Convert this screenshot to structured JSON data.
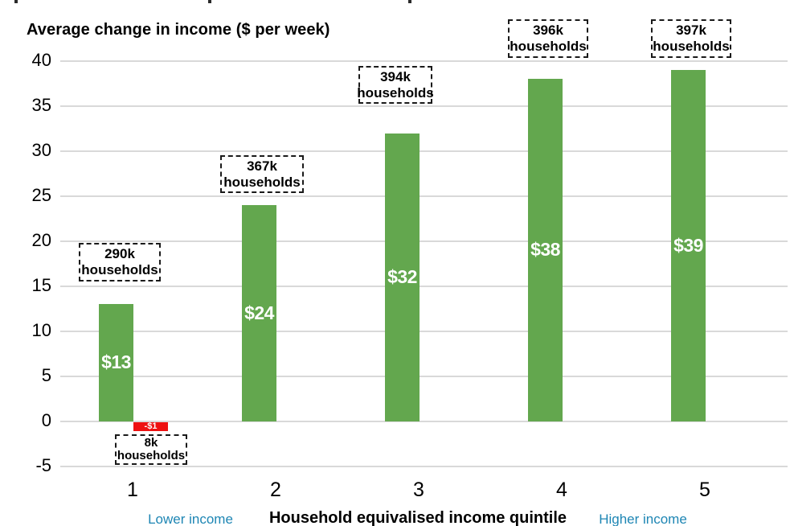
{
  "title": "Average change in income ($ per week)",
  "colors": {
    "bar_positive": "#63a74e",
    "bar_negative": "#ee1111",
    "gridline": "#d9d9d9",
    "side_label_blue": "#1e86b4",
    "text": "#000000"
  },
  "x_axis": {
    "title": "Household equivalised income quintile",
    "left_label": "Lower income",
    "right_label": "Higher income"
  },
  "chart_data": {
    "type": "bar",
    "title": "Average change in income ($ per week)",
    "categories": [
      "1",
      "2",
      "3",
      "4",
      "5"
    ],
    "xlabel": "Household equivalised income quintile",
    "ylabel": "",
    "ylim": [
      -5,
      40
    ],
    "ytick_labels": [
      "40",
      "35",
      "30",
      "25",
      "20",
      "15",
      "10",
      "5",
      "0",
      "-5"
    ],
    "ytick_values": [
      40,
      35,
      30,
      25,
      20,
      15,
      10,
      5,
      0,
      -5
    ],
    "grid": true,
    "legend": "none",
    "series": [
      {
        "name": "positive-change",
        "color": "#63a74e",
        "values": [
          13,
          24,
          32,
          38,
          39
        ],
        "labels": [
          "$13",
          "$24",
          "$32",
          "$38",
          "$39"
        ]
      },
      {
        "name": "negative-change",
        "color": "#ee1111",
        "values": [
          -1,
          null,
          null,
          null,
          null
        ],
        "labels": [
          "-$1",
          null,
          null,
          null,
          null
        ]
      }
    ],
    "annotations": [
      {
        "lines": [
          "290k",
          "households"
        ],
        "category": "1",
        "attached_to": "positive-bar-1"
      },
      {
        "lines": [
          "367k",
          "households"
        ],
        "category": "2",
        "attached_to": "positive-bar-2"
      },
      {
        "lines": [
          "394k",
          "households"
        ],
        "category": "3",
        "attached_to": "positive-bar-3"
      },
      {
        "lines": [
          "396k",
          "households"
        ],
        "category": "4",
        "attached_to": "positive-bar-4"
      },
      {
        "lines": [
          "397k",
          "households"
        ],
        "category": "5",
        "attached_to": "positive-bar-5"
      },
      {
        "lines": [
          "8k",
          "households"
        ],
        "category": "1",
        "attached_to": "negative-bar-1"
      }
    ]
  }
}
